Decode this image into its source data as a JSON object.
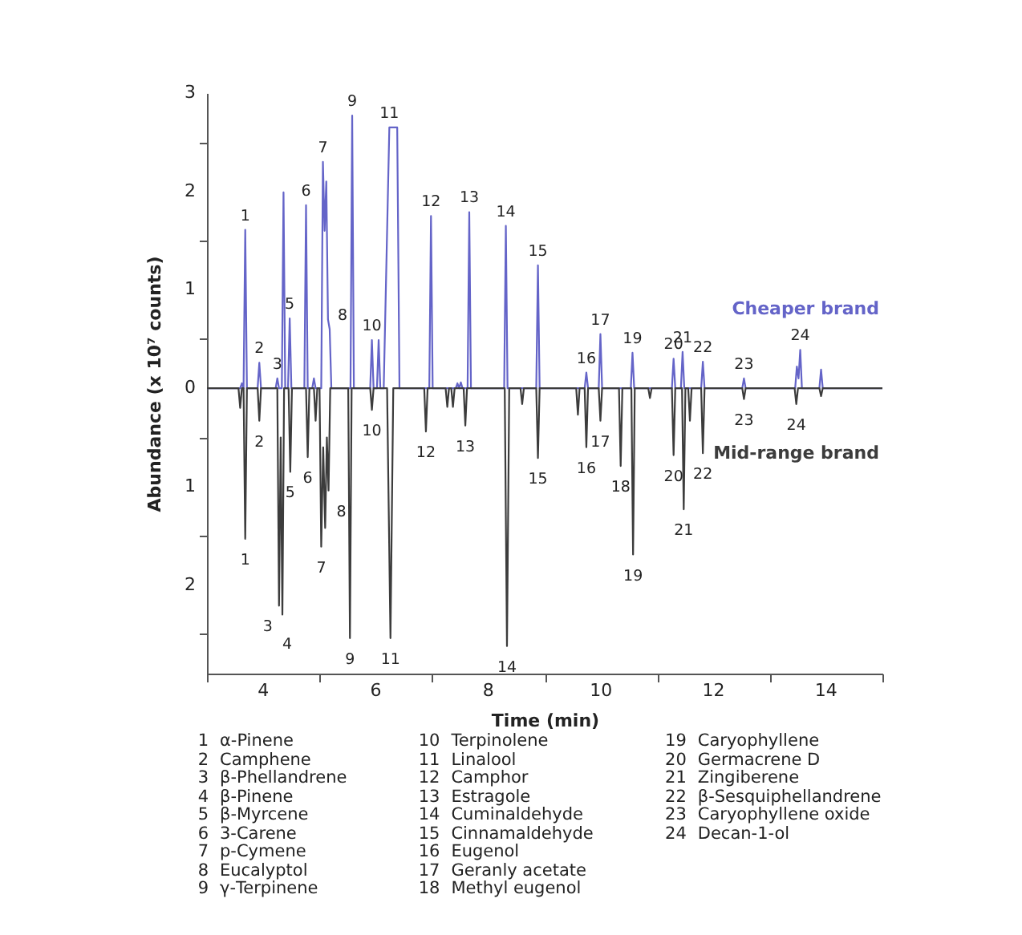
{
  "chart_data": {
    "type": "line",
    "xlabel": "Time (min)",
    "ylabel": "Abundance (x 10⁷ counts)",
    "xlim": [
      3,
      15
    ],
    "xticks": [
      {
        "value": 3,
        "label": null
      },
      4,
      {
        "value": 5,
        "label": null
      },
      6,
      {
        "value": 7,
        "label": null
      },
      8,
      {
        "value": 9,
        "label": null
      },
      10,
      {
        "value": 11,
        "label": null
      },
      12,
      {
        "value": 13,
        "label": null
      },
      14,
      {
        "value": 15,
        "label": null
      }
    ],
    "ylim": [
      -2.9,
      3
    ],
    "yticks": [
      3,
      {
        "value": 2.5,
        "label": null
      },
      2,
      {
        "value": 1.5,
        "label": null
      },
      1,
      {
        "value": 0.5,
        "label": null
      },
      0,
      {
        "value": -0.5,
        "label": null
      },
      {
        "value": -1,
        "label": "1"
      },
      {
        "value": -1.5,
        "label": null
      },
      {
        "value": -2,
        "label": "2"
      },
      {
        "value": -2.5,
        "label": null
      }
    ],
    "series": [
      {
        "name": "Cheaper brand",
        "color": "#6464c8",
        "x": [
          3,
          3.59,
          3.62,
          3.65,
          3.68,
          3.71,
          3.9,
          3.93,
          3.96,
          4.22,
          4.25,
          4.28,
          4.33,
          4.36,
          4.39,
          4.44,
          4.47,
          4.5,
          4.73,
          4.76,
          4.79,
          4.87,
          4.9,
          4.93,
          5.03,
          5.06,
          5.09,
          5.12,
          5.15,
          5.18,
          5.21,
          5.55,
          5.58,
          5.61,
          5.9,
          5.93,
          5.96,
          6.02,
          6.05,
          6.08,
          6.14,
          6.24,
          6.38,
          6.42,
          6.95,
          6.98,
          7.01,
          7.42,
          7.45,
          7.48,
          7.51,
          7.54,
          7.63,
          7.66,
          7.69,
          8.28,
          8.31,
          8.34,
          8.85,
          8.88,
          8.91,
          9.71,
          9.74,
          9.77,
          9.96,
          9.99,
          10.02,
          10.53,
          10.56,
          10.59,
          11.26,
          11.29,
          11.32,
          11.42,
          11.45,
          11.48,
          11.78,
          11.81,
          11.84,
          12.51,
          12.54,
          12.57,
          13.45,
          13.48,
          13.51,
          13.54,
          13.57,
          13.88,
          13.91,
          13.94,
          15
        ],
        "values": [
          0,
          0,
          0.05,
          0,
          1.61,
          0,
          0,
          0.26,
          0,
          0,
          0.1,
          0,
          0,
          1.99,
          0,
          0,
          0.71,
          0,
          0,
          1.86,
          0,
          0,
          0.1,
          0,
          0,
          2.3,
          1.6,
          2.1,
          0.7,
          0.6,
          0,
          0,
          2.77,
          0,
          0,
          0.49,
          0,
          0,
          0.49,
          0,
          0,
          2.65,
          2.65,
          0,
          0,
          1.75,
          0,
          0,
          0.05,
          0,
          0.06,
          0,
          0,
          1.79,
          0,
          0,
          1.65,
          0,
          0,
          1.25,
          0,
          0,
          0.16,
          0,
          0,
          0.55,
          0,
          0,
          0.36,
          0,
          0,
          0.3,
          0,
          0,
          0.37,
          0,
          0,
          0.27,
          0,
          0,
          0.1,
          0,
          0,
          0.22,
          0.1,
          0.39,
          0,
          0,
          0.19,
          0,
          0
        ]
      },
      {
        "name": "Mid-range brand",
        "color": "#3c3c3c",
        "x": [
          3,
          3.56,
          3.59,
          3.62,
          3.65,
          3.68,
          3.71,
          3.9,
          3.93,
          3.96,
          4.25,
          4.28,
          4.31,
          4.34,
          4.37,
          4.45,
          4.48,
          4.51,
          4.76,
          4.79,
          4.82,
          4.9,
          4.93,
          4.96,
          5.0,
          5.03,
          5.065,
          5.1,
          5.13,
          5.16,
          5.19,
          5.51,
          5.54,
          5.57,
          5.9,
          5.93,
          5.96,
          6.2,
          6.26,
          6.31,
          6.86,
          6.89,
          6.92,
          7.24,
          7.27,
          7.3,
          7.34,
          7.37,
          7.4,
          7.56,
          7.59,
          7.62,
          8.29,
          8.33,
          8.37,
          8.57,
          8.6,
          8.63,
          8.85,
          8.88,
          8.91,
          9.56,
          9.59,
          9.62,
          9.71,
          9.74,
          9.77,
          9.96,
          9.99,
          10.02,
          10.32,
          10.35,
          10.38,
          10.54,
          10.57,
          10.6,
          10.84,
          10.87,
          10.9,
          11.26,
          11.29,
          11.32,
          11.44,
          11.47,
          11.5,
          11.55,
          11.58,
          11.61,
          11.78,
          11.81,
          11.84,
          12.51,
          12.54,
          12.57,
          13.44,
          13.47,
          13.5,
          13.88,
          13.91,
          13.94,
          15
        ],
        "values": [
          0,
          0,
          -0.2,
          0,
          0,
          -1.53,
          0,
          0,
          -0.33,
          0,
          0,
          -2.21,
          -0.5,
          -2.3,
          0,
          0,
          -0.85,
          0,
          0,
          -0.7,
          0,
          0,
          -0.33,
          0,
          0,
          -1.61,
          -0.6,
          -1.42,
          -0.5,
          -1.04,
          0,
          0,
          -2.54,
          0,
          0,
          -0.22,
          0,
          0,
          -2.54,
          0,
          0,
          -0.44,
          0,
          0,
          -0.19,
          0,
          0,
          -0.19,
          0,
          0,
          -0.38,
          0,
          0,
          -2.62,
          0,
          0,
          -0.16,
          0,
          0,
          -0.71,
          0,
          0,
          -0.27,
          0,
          0,
          -0.6,
          0,
          0,
          -0.33,
          0,
          0,
          -0.79,
          0,
          0,
          -1.69,
          0,
          0,
          -0.1,
          0,
          0,
          -0.68,
          0,
          0,
          -1.23,
          0,
          0,
          -0.33,
          0,
          0,
          -0.66,
          0,
          0,
          -0.11,
          0,
          0,
          -0.16,
          0,
          0,
          -0.08,
          0,
          0
        ]
      }
    ],
    "annotations": [
      {
        "text": "1",
        "x": 3.68,
        "y": 1.61
      },
      {
        "text": "2",
        "x": 3.93,
        "y": 0.26
      },
      {
        "text": "3",
        "x": 4.25,
        "y": 0.1
      },
      {
        "text": "5",
        "x": 4.47,
        "y": 0.71
      },
      {
        "text": "6",
        "x": 4.76,
        "y": 1.86
      },
      {
        "text": "7",
        "x": 5.06,
        "y": 2.3
      },
      {
        "text": "8",
        "x": 5.18,
        "y": 0.6
      },
      {
        "text": "9",
        "x": 5.58,
        "y": 2.77
      },
      {
        "text": "10",
        "x": 5.93,
        "y": 0.49
      },
      {
        "text": "11",
        "x": 6.24,
        "y": 2.65
      },
      {
        "text": "12",
        "x": 6.98,
        "y": 1.75
      },
      {
        "text": "13",
        "x": 7.66,
        "y": 1.79
      },
      {
        "text": "14",
        "x": 8.31,
        "y": 1.65
      },
      {
        "text": "15",
        "x": 8.88,
        "y": 1.25
      },
      {
        "text": "16",
        "x": 9.74,
        "y": 0.16
      },
      {
        "text": "17",
        "x": 9.99,
        "y": 0.55
      },
      {
        "text": "19",
        "x": 10.56,
        "y": 0.36
      },
      {
        "text": "20",
        "x": 11.29,
        "y": 0.3
      },
      {
        "text": "21",
        "x": 11.45,
        "y": 0.37
      },
      {
        "text": "22",
        "x": 11.81,
        "y": 0.27
      },
      {
        "text": "23",
        "x": 12.54,
        "y": 0.1
      },
      {
        "text": "24",
        "x": 13.54,
        "y": 0.39
      },
      {
        "text": "1",
        "x": 3.68,
        "y": -1.53
      },
      {
        "text": "2",
        "x": 3.93,
        "y": -0.33
      },
      {
        "text": "3",
        "x": 4.28,
        "y": -2.21
      },
      {
        "text": "4",
        "x": 4.34,
        "y": -2.3
      },
      {
        "text": "5",
        "x": 4.48,
        "y": -0.85
      },
      {
        "text": "6",
        "x": 4.79,
        "y": -0.7
      },
      {
        "text": "7",
        "x": 5.03,
        "y": -1.61
      },
      {
        "text": "8",
        "x": 5.16,
        "y": -1.04
      },
      {
        "text": "9",
        "x": 5.54,
        "y": -2.54
      },
      {
        "text": "10",
        "x": 5.93,
        "y": -0.22
      },
      {
        "text": "11",
        "x": 6.26,
        "y": -2.54
      },
      {
        "text": "12",
        "x": 6.89,
        "y": -0.44
      },
      {
        "text": "13",
        "x": 7.59,
        "y": -0.38
      },
      {
        "text": "14",
        "x": 8.33,
        "y": -2.62
      },
      {
        "text": "15",
        "x": 8.88,
        "y": -0.71
      },
      {
        "text": "16",
        "x": 9.74,
        "y": -0.6
      },
      {
        "text": "17",
        "x": 9.99,
        "y": -0.33
      },
      {
        "text": "18",
        "x": 10.35,
        "y": -0.79
      },
      {
        "text": "19",
        "x": 10.57,
        "y": -1.69
      },
      {
        "text": "20",
        "x": 11.29,
        "y": -0.68
      },
      {
        "text": "21",
        "x": 11.47,
        "y": -1.23
      },
      {
        "text": "22",
        "x": 11.81,
        "y": -0.66
      },
      {
        "text": "23",
        "x": 12.54,
        "y": -0.11
      },
      {
        "text": "24",
        "x": 13.47,
        "y": -0.16
      },
      "1 α-Pinene",
      "2 Camphene",
      "3 β-Phellandrene",
      "4 β-Pinene",
      "5 β-Myrcene",
      "6 3-Carene",
      "7 p-Cymene",
      "8 Eucalyptol",
      "9 γ-Terpinene",
      "10 Terpinolene",
      "11 Linalool",
      "12 Camphor",
      "13 Estragole",
      "14 Cuminaldehyde",
      "15 Cinnamaldehyde",
      "16 Eugenol",
      "17 Geranly acetate",
      "18 Methyl eugenol",
      "19 Caryophyllene",
      "20 Germacrene D",
      "21 Zingiberene",
      "22 β-Sesquiphellandrene",
      "23 Caryophyllene oxide",
      "24 Decan-1-ol"
    ]
  }
}
